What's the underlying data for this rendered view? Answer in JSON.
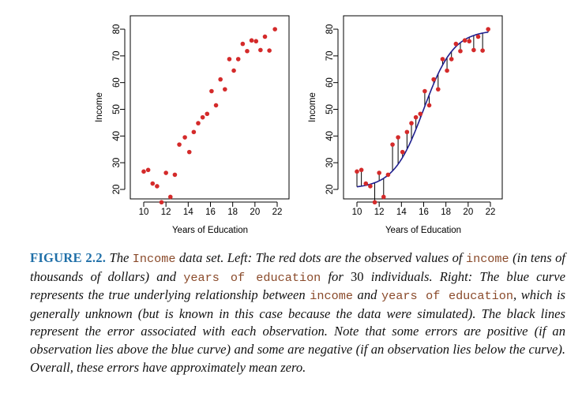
{
  "chart_data": [
    {
      "type": "scatter",
      "title": "",
      "xlabel": "Years of Education",
      "ylabel": "Income",
      "xlim": [
        10,
        22
      ],
      "ylim": [
        15,
        80
      ],
      "xticks": [
        "10",
        "12",
        "14",
        "16",
        "18",
        "20",
        "22"
      ],
      "yticks": [
        "20",
        "30",
        "40",
        "50",
        "60",
        "70",
        "80"
      ],
      "point_color": "#d42a2a",
      "points": [
        {
          "x": 10.0,
          "y": 26.7
        },
        {
          "x": 10.4,
          "y": 27.3
        },
        {
          "x": 10.8,
          "y": 22.2
        },
        {
          "x": 11.2,
          "y": 21.2
        },
        {
          "x": 11.6,
          "y": 15.2
        },
        {
          "x": 12.0,
          "y": 26.2
        },
        {
          "x": 12.4,
          "y": 17.2
        },
        {
          "x": 12.8,
          "y": 25.5
        },
        {
          "x": 13.2,
          "y": 36.8
        },
        {
          "x": 13.7,
          "y": 39.5
        },
        {
          "x": 14.1,
          "y": 34.0
        },
        {
          "x": 14.5,
          "y": 41.5
        },
        {
          "x": 14.9,
          "y": 44.8
        },
        {
          "x": 15.3,
          "y": 47.0
        },
        {
          "x": 15.7,
          "y": 48.3
        },
        {
          "x": 16.1,
          "y": 56.8
        },
        {
          "x": 16.5,
          "y": 51.5
        },
        {
          "x": 16.9,
          "y": 61.2
        },
        {
          "x": 17.3,
          "y": 57.5
        },
        {
          "x": 17.7,
          "y": 68.8
        },
        {
          "x": 18.1,
          "y": 64.5
        },
        {
          "x": 18.5,
          "y": 68.8
        },
        {
          "x": 18.9,
          "y": 74.5
        },
        {
          "x": 19.3,
          "y": 71.8
        },
        {
          "x": 19.7,
          "y": 75.8
        },
        {
          "x": 20.1,
          "y": 75.5
        },
        {
          "x": 20.5,
          "y": 72.2
        },
        {
          "x": 20.9,
          "y": 77.2
        },
        {
          "x": 21.3,
          "y": 72.0
        },
        {
          "x": 21.8,
          "y": 80.0
        }
      ]
    },
    {
      "type": "scatter",
      "title": "",
      "xlabel": "Years of Education",
      "ylabel": "Income",
      "xlim": [
        10,
        22
      ],
      "ylim": [
        15,
        80
      ],
      "xticks": [
        "10",
        "12",
        "14",
        "16",
        "18",
        "20",
        "22"
      ],
      "yticks": [
        "20",
        "30",
        "40",
        "50",
        "60",
        "70",
        "80"
      ],
      "point_color": "#d42a2a",
      "curve_color": "#1f1f8f",
      "residual_color": "#000000",
      "curve": {
        "form": "sigmoid",
        "lower": 20.3,
        "upper": 79.7,
        "midpoint": 16.0,
        "scale": 1.35
      },
      "points": [
        {
          "x": 10.0,
          "y": 26.7
        },
        {
          "x": 10.4,
          "y": 27.3
        },
        {
          "x": 10.8,
          "y": 22.2
        },
        {
          "x": 11.2,
          "y": 21.2
        },
        {
          "x": 11.6,
          "y": 15.2
        },
        {
          "x": 12.0,
          "y": 26.2
        },
        {
          "x": 12.4,
          "y": 17.2
        },
        {
          "x": 12.8,
          "y": 25.5
        },
        {
          "x": 13.2,
          "y": 36.8
        },
        {
          "x": 13.7,
          "y": 39.5
        },
        {
          "x": 14.1,
          "y": 34.0
        },
        {
          "x": 14.5,
          "y": 41.5
        },
        {
          "x": 14.9,
          "y": 44.8
        },
        {
          "x": 15.3,
          "y": 47.0
        },
        {
          "x": 15.7,
          "y": 48.3
        },
        {
          "x": 16.1,
          "y": 56.8
        },
        {
          "x": 16.5,
          "y": 51.5
        },
        {
          "x": 16.9,
          "y": 61.2
        },
        {
          "x": 17.3,
          "y": 57.5
        },
        {
          "x": 17.7,
          "y": 68.8
        },
        {
          "x": 18.1,
          "y": 64.5
        },
        {
          "x": 18.5,
          "y": 68.8
        },
        {
          "x": 18.9,
          "y": 74.5
        },
        {
          "x": 19.3,
          "y": 71.8
        },
        {
          "x": 19.7,
          "y": 75.8
        },
        {
          "x": 20.1,
          "y": 75.5
        },
        {
          "x": 20.5,
          "y": 72.2
        },
        {
          "x": 20.9,
          "y": 77.2
        },
        {
          "x": 21.3,
          "y": 72.0
        },
        {
          "x": 21.8,
          "y": 80.0
        }
      ]
    }
  ],
  "caption": {
    "label": "FIGURE 2.2.",
    "segments": [
      {
        "t": "it",
        "s": " The "
      },
      {
        "t": "mono",
        "s": "Income"
      },
      {
        "t": "it",
        "s": " data set. Left: The red dots are the observed values of "
      },
      {
        "t": "mono",
        "s": "income"
      },
      {
        "t": "it",
        "s": " (in tens of thousands of dollars) and "
      },
      {
        "t": "mono",
        "s": "years of education"
      },
      {
        "t": "it",
        "s": " for "
      },
      {
        "t": "rm",
        "s": "30"
      },
      {
        "t": "it",
        "s": " individuals. Right: The blue curve represents the true underlying relationship between "
      },
      {
        "t": "mono",
        "s": "income"
      },
      {
        "t": "it",
        "s": " and "
      },
      {
        "t": "mono",
        "s": "years of education"
      },
      {
        "t": "it",
        "s": ", which is generally unknown (but is known in this case because the data were simulated). The black lines represent the error associated with each observation. Note that some errors are positive (if an observation lies above the blue curve) and some are negative (if an observation lies below the curve). Overall, these errors have approximately mean zero."
      }
    ]
  }
}
